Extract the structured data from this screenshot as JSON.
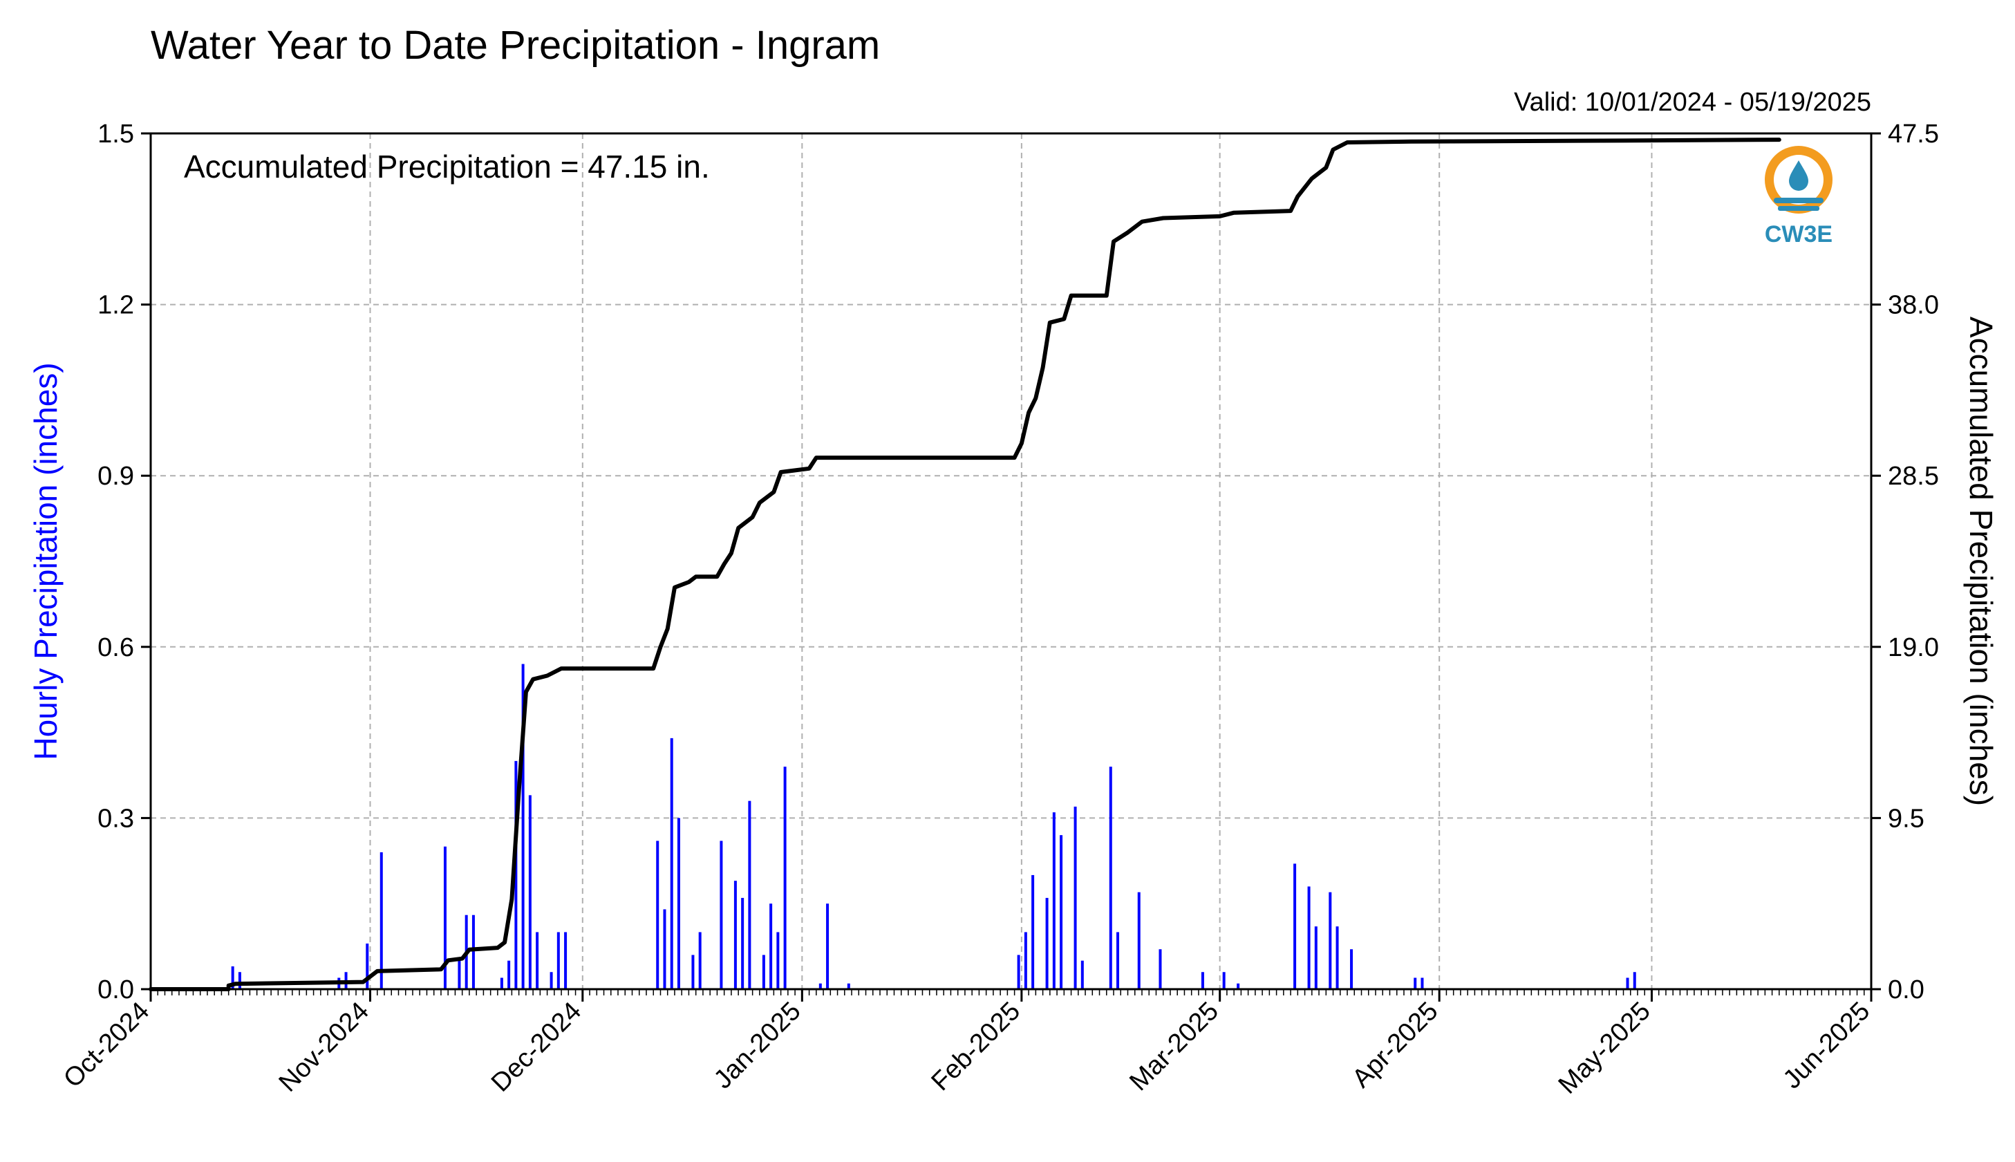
{
  "chart_data": {
    "type": "bar+line",
    "title": "Water Year to Date Precipitation - Ingram",
    "subtitle": "Valid: 10/01/2024 - 05/19/2025",
    "annotation": "Accumulated Precipitation = 47.15 in.",
    "logo_text": "CW3E",
    "ylabel_left": "Hourly Precipitation (inches)",
    "ylabel_right": "Accumulated Precipitation (inches)",
    "ylim_left": [
      0,
      1.5
    ],
    "ylim_right": [
      0,
      47.5
    ],
    "yticks_left": [
      "0.0",
      "0.3",
      "0.6",
      "0.9",
      "1.2",
      "1.5"
    ],
    "yticks_right": [
      "0.0",
      "9.5",
      "19.0",
      "28.5",
      "38.0",
      "47.5"
    ],
    "x_range": [
      "2024-10-01",
      "2025-06-01"
    ],
    "xticks": [
      {
        "label": "Oct-2024",
        "date": "2024-10-01"
      },
      {
        "label": "Nov-2024",
        "date": "2024-11-01"
      },
      {
        "label": "Dec-2024",
        "date": "2024-12-01"
      },
      {
        "label": "Jan-2025",
        "date": "2025-01-01"
      },
      {
        "label": "Feb-2025",
        "date": "2025-02-01"
      },
      {
        "label": "Mar-2025",
        "date": "2025-03-01"
      },
      {
        "label": "Apr-2025",
        "date": "2025-04-01"
      },
      {
        "label": "May-2025",
        "date": "2025-05-01"
      },
      {
        "label": "Jun-2025",
        "date": "2025-06-01"
      }
    ],
    "grid": true,
    "colors": {
      "hourly": "#0000ff",
      "accumulated": "#000000",
      "grid": "#b0b0b0",
      "left_label": "#0000ff"
    },
    "series": [
      {
        "name": "Hourly Precipitation",
        "type": "bar",
        "data": [
          [
            "2024-10-12",
            0.04
          ],
          [
            "2024-10-13",
            0.03
          ],
          [
            "2024-10-27",
            0.02
          ],
          [
            "2024-10-28",
            0.03
          ],
          [
            "2024-10-31",
            0.08
          ],
          [
            "2024-11-02",
            0.24
          ],
          [
            "2024-11-11",
            0.25
          ],
          [
            "2024-11-13",
            0.05
          ],
          [
            "2024-11-14",
            0.13
          ],
          [
            "2024-11-15",
            0.13
          ],
          [
            "2024-11-19",
            0.02
          ],
          [
            "2024-11-20",
            0.05
          ],
          [
            "2024-11-21",
            0.4
          ],
          [
            "2024-11-22",
            0.57
          ],
          [
            "2024-11-23",
            0.34
          ],
          [
            "2024-11-24",
            0.1
          ],
          [
            "2024-11-26",
            0.03
          ],
          [
            "2024-11-27",
            0.1
          ],
          [
            "2024-11-28",
            0.1
          ],
          [
            "2024-12-11",
            0.26
          ],
          [
            "2024-12-12",
            0.14
          ],
          [
            "2024-12-13",
            0.44
          ],
          [
            "2024-12-14",
            0.3
          ],
          [
            "2024-12-16",
            0.06
          ],
          [
            "2024-12-17",
            0.1
          ],
          [
            "2024-12-20",
            0.26
          ],
          [
            "2024-12-22",
            0.19
          ],
          [
            "2024-12-23",
            0.16
          ],
          [
            "2024-12-24",
            0.33
          ],
          [
            "2024-12-26",
            0.06
          ],
          [
            "2024-12-27",
            0.15
          ],
          [
            "2024-12-28",
            0.1
          ],
          [
            "2024-12-29",
            0.39
          ],
          [
            "2025-01-03",
            0.01
          ],
          [
            "2025-01-04",
            0.15
          ],
          [
            "2025-01-07",
            0.01
          ],
          [
            "2025-01-31",
            0.06
          ],
          [
            "2025-02-01",
            0.1
          ],
          [
            "2025-02-02",
            0.2
          ],
          [
            "2025-02-04",
            0.16
          ],
          [
            "2025-02-05",
            0.31
          ],
          [
            "2025-02-06",
            0.27
          ],
          [
            "2025-02-08",
            0.32
          ],
          [
            "2025-02-09",
            0.05
          ],
          [
            "2025-02-13",
            0.39
          ],
          [
            "2025-02-14",
            0.1
          ],
          [
            "2025-02-17",
            0.17
          ],
          [
            "2025-02-20",
            0.07
          ],
          [
            "2025-02-26",
            0.03
          ],
          [
            "2025-03-01",
            0.03
          ],
          [
            "2025-03-03",
            0.01
          ],
          [
            "2025-03-11",
            0.22
          ],
          [
            "2025-03-13",
            0.18
          ],
          [
            "2025-03-14",
            0.11
          ],
          [
            "2025-03-16",
            0.17
          ],
          [
            "2025-03-17",
            0.11
          ],
          [
            "2025-03-19",
            0.07
          ],
          [
            "2025-03-28",
            0.02
          ],
          [
            "2025-03-29",
            0.02
          ],
          [
            "2025-04-27",
            0.02
          ],
          [
            "2025-04-28",
            0.03
          ]
        ]
      },
      {
        "name": "Accumulated Precipitation",
        "type": "line",
        "data": [
          [
            "2024-10-01",
            0.0
          ],
          [
            "2024-10-12",
            0.0
          ],
          [
            "2024-10-12",
            0.2
          ],
          [
            "2024-10-13",
            0.3
          ],
          [
            "2024-10-31",
            0.4
          ],
          [
            "2024-11-01",
            0.7
          ],
          [
            "2024-11-02",
            1.0
          ],
          [
            "2024-11-11",
            1.1
          ],
          [
            "2024-11-12",
            1.6
          ],
          [
            "2024-11-14",
            1.7
          ],
          [
            "2024-11-15",
            2.2
          ],
          [
            "2024-11-19",
            2.3
          ],
          [
            "2024-11-20",
            2.6
          ],
          [
            "2024-11-21",
            5.0
          ],
          [
            "2024-11-22",
            11.0
          ],
          [
            "2024-11-23",
            16.5
          ],
          [
            "2024-11-24",
            17.2
          ],
          [
            "2024-11-26",
            17.4
          ],
          [
            "2024-11-28",
            17.8
          ],
          [
            "2024-12-11",
            17.8
          ],
          [
            "2024-12-12",
            19.0
          ],
          [
            "2024-12-13",
            20.0
          ],
          [
            "2024-12-14",
            22.3
          ],
          [
            "2024-12-16",
            22.6
          ],
          [
            "2024-12-17",
            22.9
          ],
          [
            "2024-12-20",
            22.9
          ],
          [
            "2024-12-21",
            23.6
          ],
          [
            "2024-12-22",
            24.2
          ],
          [
            "2024-12-23",
            25.6
          ],
          [
            "2024-12-25",
            26.2
          ],
          [
            "2024-12-26",
            27.0
          ],
          [
            "2024-12-28",
            27.6
          ],
          [
            "2024-12-29",
            28.7
          ],
          [
            "2025-01-02",
            28.9
          ],
          [
            "2025-01-03",
            29.5
          ],
          [
            "2025-01-31",
            29.5
          ],
          [
            "2025-02-01",
            30.3
          ],
          [
            "2025-02-02",
            32.0
          ],
          [
            "2025-02-03",
            32.8
          ],
          [
            "2025-02-04",
            34.5
          ],
          [
            "2025-02-05",
            37.0
          ],
          [
            "2025-02-07",
            37.2
          ],
          [
            "2025-02-08",
            38.5
          ],
          [
            "2025-02-13",
            38.5
          ],
          [
            "2025-02-14",
            41.5
          ],
          [
            "2025-02-16",
            42.0
          ],
          [
            "2025-02-18",
            42.6
          ],
          [
            "2025-02-21",
            42.8
          ],
          [
            "2025-03-01",
            42.9
          ],
          [
            "2025-03-03",
            43.1
          ],
          [
            "2025-03-11",
            43.2
          ],
          [
            "2025-03-12",
            44.0
          ],
          [
            "2025-03-14",
            45.0
          ],
          [
            "2025-03-16",
            45.6
          ],
          [
            "2025-03-17",
            46.6
          ],
          [
            "2025-03-19",
            47.0
          ],
          [
            "2025-03-28",
            47.05
          ],
          [
            "2025-04-27",
            47.1
          ],
          [
            "2025-05-19",
            47.15
          ]
        ]
      }
    ]
  }
}
